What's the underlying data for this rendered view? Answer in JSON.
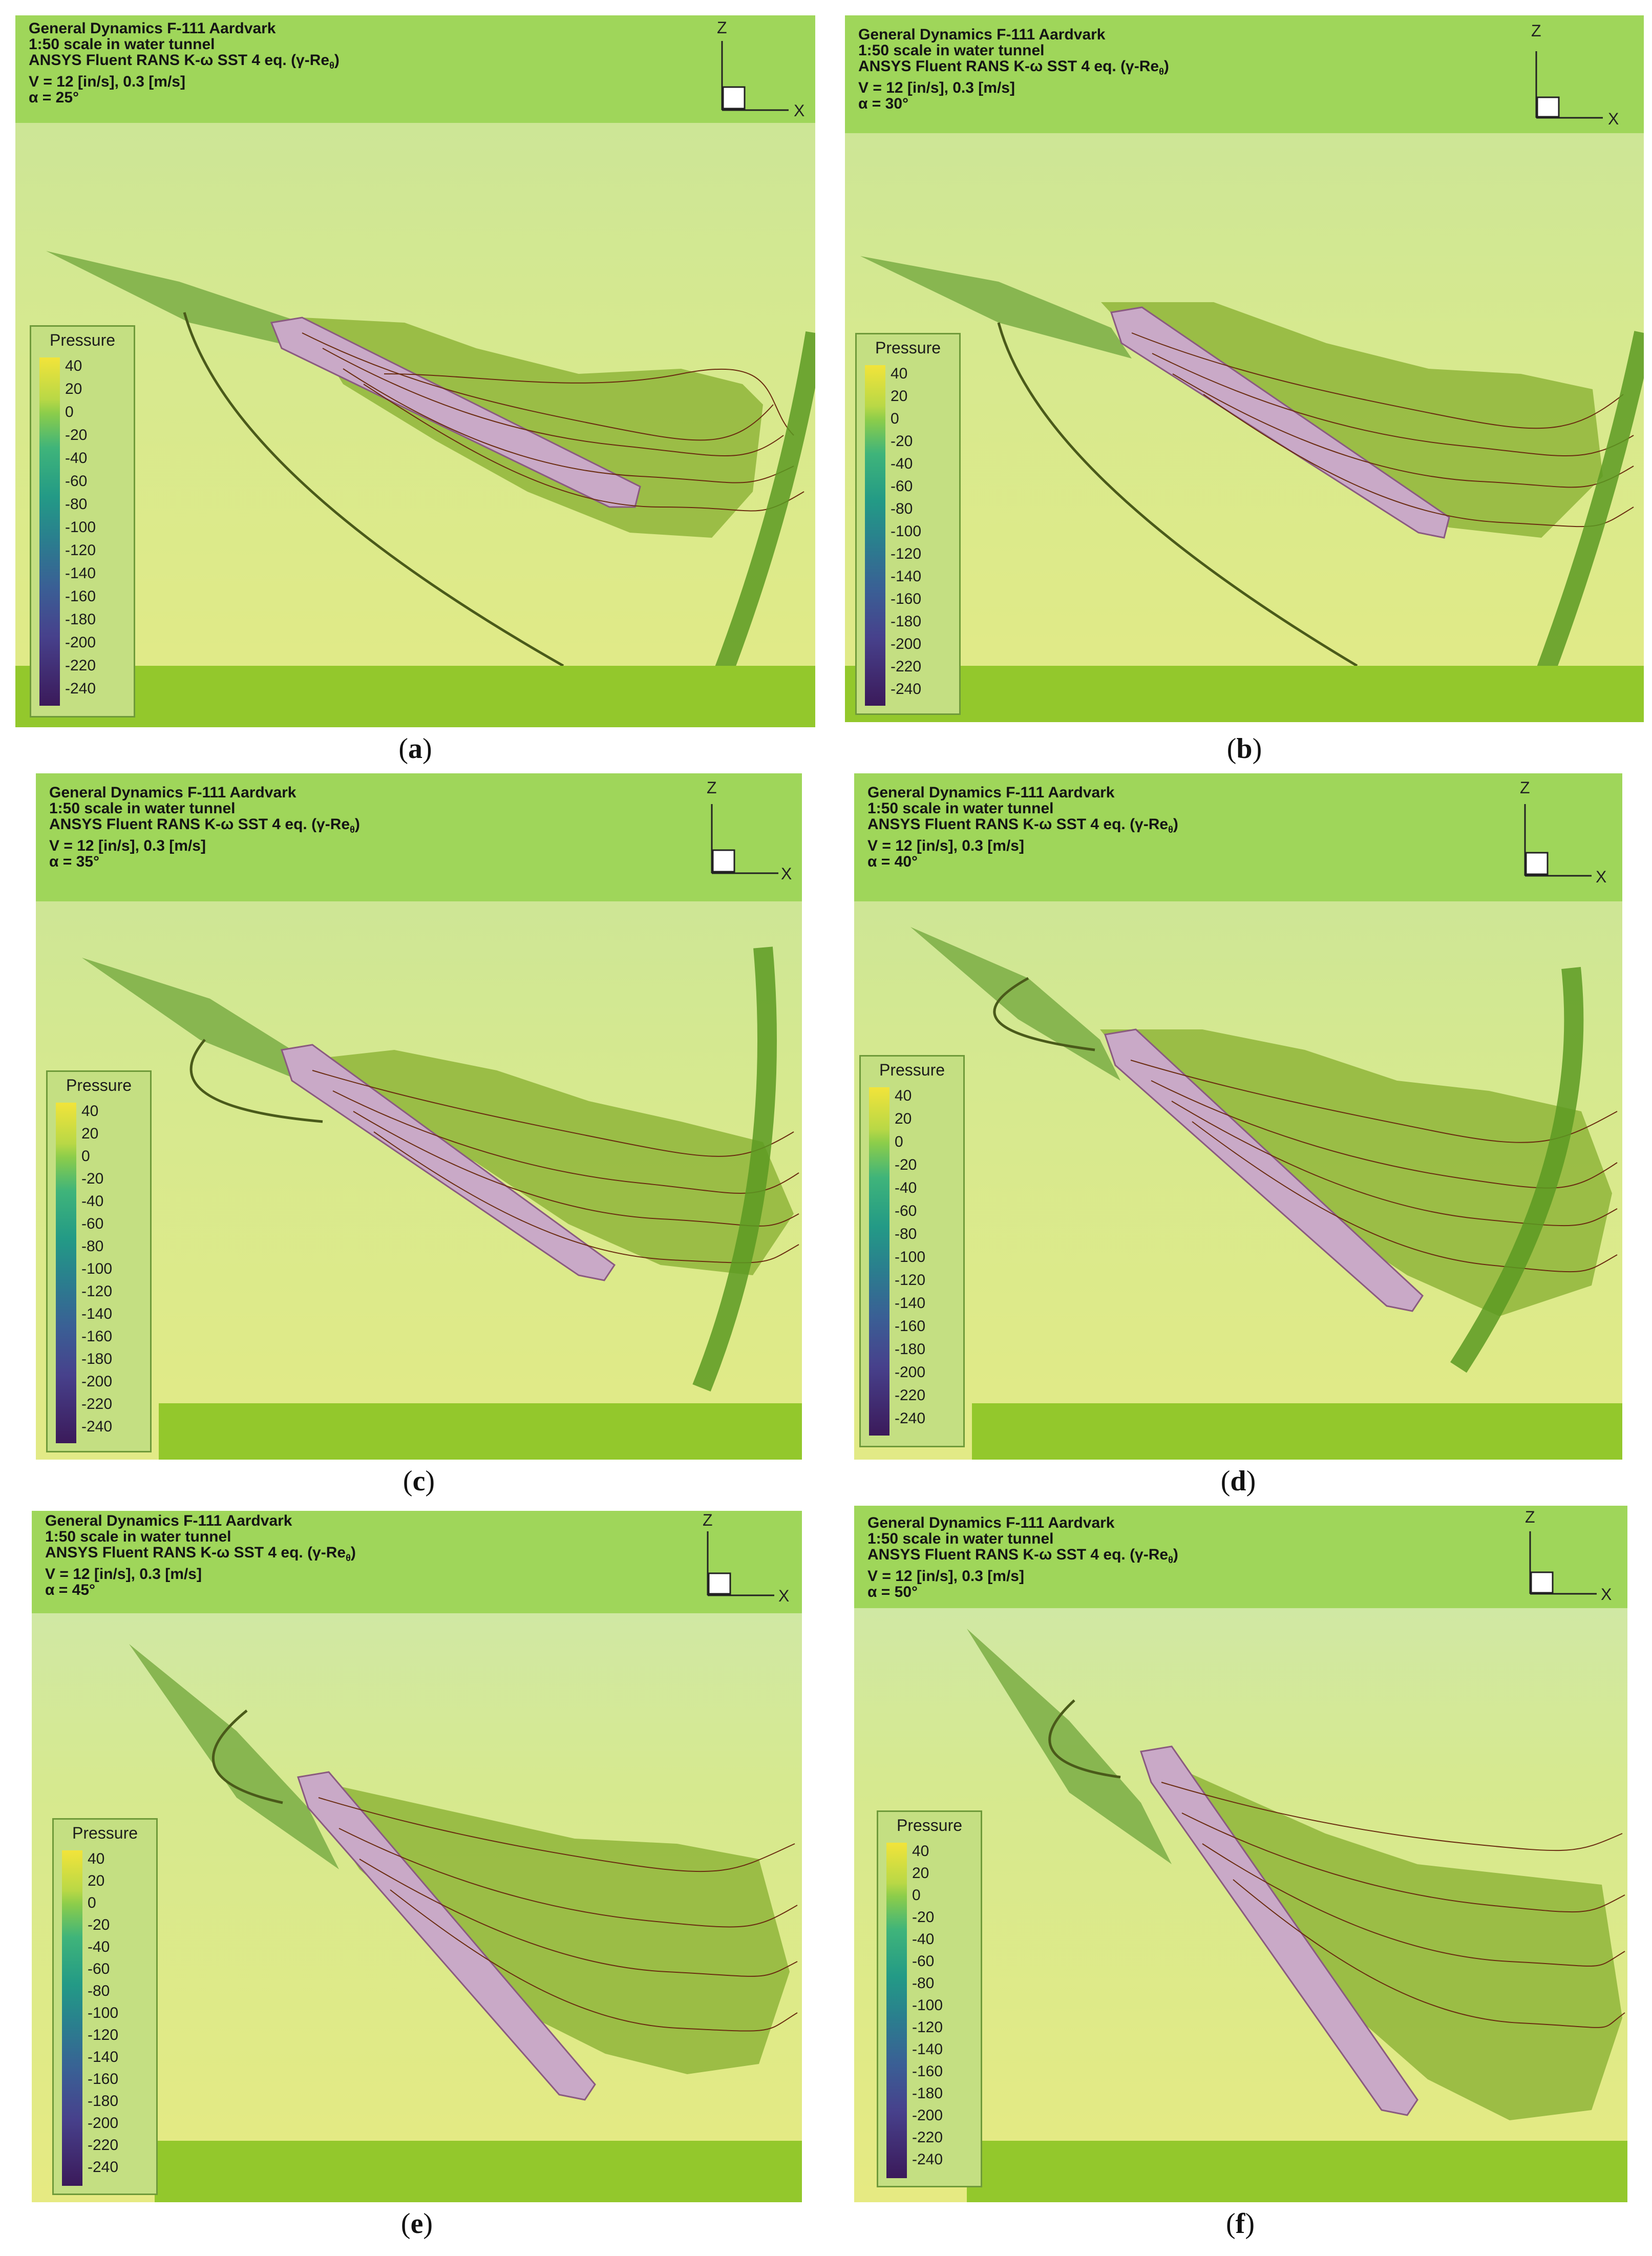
{
  "figure": {
    "legend_title": "Pressure",
    "legend_ticks": [
      "40",
      "20",
      "0",
      "-20",
      "-40",
      "-60",
      "-80",
      "-100",
      "-120",
      "-140",
      "-160",
      "-180",
      "-200",
      "-220",
      "-240"
    ],
    "axes": {
      "z": "Z",
      "x": "X"
    },
    "colors": {
      "header": "#9fd65a",
      "background": "#d9ea9a",
      "fuselage": "#c9a9c7",
      "streamline": "#5a2a12"
    }
  },
  "panels": [
    {
      "line1": "General Dynamics F-111 Aardvark",
      "line2": "1:50 scale in water tunnel",
      "line3": "ANSYS Fluent RANS K-ω SST 4 eq. (γ-Re",
      "line3_sub": "θ",
      "line3_end": ")",
      "line4": "V = 12 [in/s], 0.3 [m/s]",
      "line5": "α = 25°",
      "alpha_deg": 25,
      "caption_open": "(",
      "caption_letter": "a",
      "caption_close": ")"
    },
    {
      "line1": "General Dynamics F-111 Aardvark",
      "line2": "1:50 scale in water tunnel",
      "line3": "ANSYS Fluent RANS K-ω SST 4 eq. (γ-Re",
      "line3_sub": "θ",
      "line3_end": ")",
      "line4": "V = 12 [in/s], 0.3 [m/s]",
      "line5": "α = 30°",
      "alpha_deg": 30,
      "caption_open": "(",
      "caption_letter": "b",
      "caption_close": ")"
    },
    {
      "line1": "General Dynamics F-111 Aardvark",
      "line2": "1:50 scale in water tunnel",
      "line3": "ANSYS Fluent RANS K-ω SST 4 eq. (γ-Re",
      "line3_sub": "θ",
      "line3_end": ")",
      "line4": "V = 12 [in/s], 0.3 [m/s]",
      "line5": "α = 35°",
      "alpha_deg": 35,
      "caption_open": "(",
      "caption_letter": "c",
      "caption_close": ")"
    },
    {
      "line1": "General Dynamics F-111 Aardvark",
      "line2": "1:50 scale in water tunnel",
      "line3": "ANSYS Fluent RANS K-ω SST 4 eq. (γ-Re",
      "line3_sub": "θ",
      "line3_end": ")",
      "line4": "V = 12 [in/s], 0.3 [m/s]",
      "line5": "α = 40°",
      "alpha_deg": 40,
      "caption_open": "(",
      "caption_letter": "d",
      "caption_close": ")"
    },
    {
      "line1": "General Dynamics F-111 Aardvark",
      "line2": "1:50 scale in water tunnel",
      "line3": "ANSYS Fluent RANS K-ω SST 4 eq. (γ-Re",
      "line3_sub": "θ",
      "line3_end": ")",
      "line4": "V = 12 [in/s], 0.3 [m/s]",
      "line5": "α = 45°",
      "alpha_deg": 45,
      "caption_open": "(",
      "caption_letter": "e",
      "caption_close": ")"
    },
    {
      "line1": "General Dynamics F-111 Aardvark",
      "line2": "1:50 scale in water tunnel",
      "line3": "ANSYS Fluent RANS K-ω SST 4 eq. (γ-Re",
      "line3_sub": "θ",
      "line3_end": ")",
      "line4": "V = 12 [in/s], 0.3 [m/s]",
      "line5": "α = 50°",
      "alpha_deg": 50,
      "caption_open": "(",
      "caption_letter": "f",
      "caption_close": ")"
    }
  ]
}
